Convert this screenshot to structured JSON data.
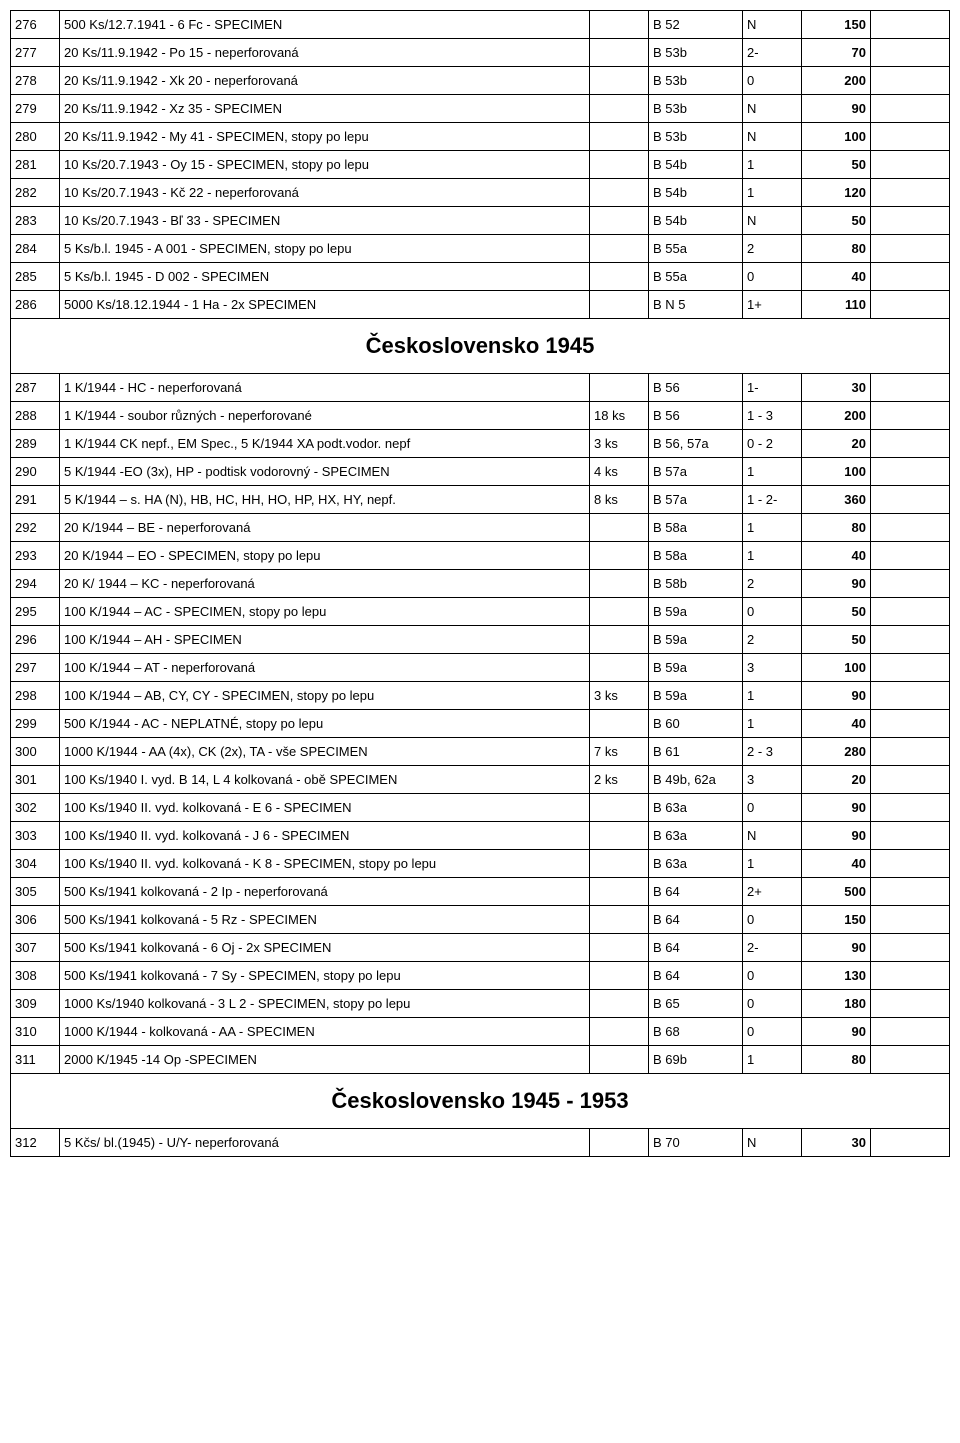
{
  "sections": [
    {
      "rows": [
        {
          "num": "276",
          "desc": "500 Ks/12.7.1941 - 6 Fc - SPECIMEN",
          "qty": "",
          "cat": "B 52",
          "grade": "N",
          "price": "150"
        },
        {
          "num": "277",
          "desc": "20 Ks/11.9.1942 - Po 15 - neperforovaná",
          "qty": "",
          "cat": "B 53b",
          "grade": "2-",
          "price": "70"
        },
        {
          "num": "278",
          "desc": "20 Ks/11.9.1942 - Xk 20 - neperforovaná",
          "qty": "",
          "cat": "B 53b",
          "grade": "0",
          "price": "200"
        },
        {
          "num": "279",
          "desc": "20 Ks/11.9.1942 - Xz 35 - SPECIMEN",
          "qty": "",
          "cat": "B 53b",
          "grade": "N",
          "price": "90"
        },
        {
          "num": "280",
          "desc": "20 Ks/11.9.1942 - My 41 - SPECIMEN, stopy po lepu",
          "qty": "",
          "cat": "B 53b",
          "grade": "N",
          "price": "100"
        },
        {
          "num": "281",
          "desc": "10 Ks/20.7.1943 - Oy 15 - SPECIMEN, stopy po lepu",
          "qty": "",
          "cat": "B 54b",
          "grade": "1",
          "price": "50"
        },
        {
          "num": "282",
          "desc": "10 Ks/20.7.1943 - Kč 22 - neperforovaná",
          "qty": "",
          "cat": "B 54b",
          "grade": "1",
          "price": "120"
        },
        {
          "num": "283",
          "desc": "10 Ks/20.7.1943 - Bľ 33 - SPECIMEN",
          "qty": "",
          "cat": "B 54b",
          "grade": "N",
          "price": "50"
        },
        {
          "num": "284",
          "desc": "5 Ks/b.l. 1945 - A 001 - SPECIMEN, stopy po lepu",
          "qty": "",
          "cat": "B 55a",
          "grade": "2",
          "price": "80"
        },
        {
          "num": "285",
          "desc": "5 Ks/b.l. 1945 - D 002 - SPECIMEN",
          "qty": "",
          "cat": "B 55a",
          "grade": "0",
          "price": "40"
        },
        {
          "num": "286",
          "desc": "5000 Ks/18.12.1944 - 1 Ha - 2x SPECIMEN",
          "qty": "",
          "cat": "B N 5",
          "grade": "1+",
          "price": "110"
        }
      ]
    },
    {
      "heading": "Československo 1945",
      "rows": [
        {
          "num": "287",
          "desc": "1 K/1944 - HC - neperforovaná",
          "qty": "",
          "cat": "B 56",
          "grade": "1-",
          "price": "30"
        },
        {
          "num": "288",
          "desc": "1 K/1944 - soubor různých - neperforované",
          "qty": "18 ks",
          "cat": "B 56",
          "grade": "1 - 3",
          "price": "200"
        },
        {
          "num": "289",
          "desc": "1 K/1944 CK nepf., EM Spec., 5 K/1944 XA podt.vodor. nepf",
          "qty": "3 ks",
          "cat": "B 56, 57a",
          "grade": "0 - 2",
          "price": "20"
        },
        {
          "num": "290",
          "desc": "5 K/1944 -EO  (3x), HP - podtisk vodorovný  - SPECIMEN",
          "qty": "4 ks",
          "cat": "B 57a",
          "grade": "1",
          "price": "100"
        },
        {
          "num": "291",
          "desc": "5 K/1944 – s. HA (N), HB, HC, HH, HO, HP, HX, HY, nepf.",
          "qty": "8 ks",
          "cat": "B 57a",
          "grade": "1 - 2-",
          "price": "360"
        },
        {
          "num": "292",
          "desc": "20 K/1944 – BE - neperforovaná",
          "qty": "",
          "cat": "B 58a",
          "grade": "1",
          "price": "80"
        },
        {
          "num": "293",
          "desc": "20 K/1944 – EO - SPECIMEN, stopy po lepu",
          "qty": "",
          "cat": "B 58a",
          "grade": "1",
          "price": "40"
        },
        {
          "num": "294",
          "desc": "20 K/ 1944 – KC - neperforovaná",
          "qty": "",
          "cat": "B 58b",
          "grade": "2",
          "price": "90"
        },
        {
          "num": "295",
          "desc": "100 K/1944 – AC - SPECIMEN, stopy po lepu",
          "qty": "",
          "cat": "B 59a",
          "grade": "0",
          "price": "50"
        },
        {
          "num": "296",
          "desc": "100 K/1944 – AH - SPECIMEN",
          "qty": "",
          "cat": "B 59a",
          "grade": "2",
          "price": "50"
        },
        {
          "num": "297",
          "desc": "100 K/1944 – AT - neperforovaná",
          "qty": "",
          "cat": "B 59a",
          "grade": "3",
          "price": "100"
        },
        {
          "num": "298",
          "desc": "100 K/1944 – AB, CY, CY - SPECIMEN, stopy po lepu",
          "qty": "3 ks",
          "cat": "B 59a",
          "grade": "1",
          "price": "90"
        },
        {
          "num": "299",
          "desc": "500 K/1944 - AC - NEPLATNÉ, stopy po lepu",
          "qty": "",
          "cat": "B 60",
          "grade": "1",
          "price": "40"
        },
        {
          "num": "300",
          "desc": "1000 K/1944 - AA (4x), CK (2x), TA - vše SPECIMEN",
          "qty": "7 ks",
          "cat": "B 61",
          "grade": "2 - 3",
          "price": "280"
        },
        {
          "num": "301",
          "desc": "100 Ks/1940 I. vyd. B 14, L 4 kolkovaná - obě SPECIMEN",
          "qty": "2 ks",
          "cat": "B 49b, 62a",
          "grade": "3",
          "price": "20"
        },
        {
          "num": "302",
          "desc": "100 Ks/1940 II. vyd. kolkovaná - E 6 - SPECIMEN",
          "qty": "",
          "cat": "B 63a",
          "grade": "0",
          "price": "90"
        },
        {
          "num": "303",
          "desc": "100 Ks/1940 II. vyd. kolkovaná - J 6 - SPECIMEN",
          "qty": "",
          "cat": "B 63a",
          "grade": "N",
          "price": "90"
        },
        {
          "num": "304",
          "desc": "100 Ks/1940 II. vyd. kolkovaná - K 8 - SPECIMEN, stopy po lepu",
          "qty": "",
          "cat": "B 63a",
          "grade": "1",
          "price": "40"
        },
        {
          "num": "305",
          "desc": "500 Ks/1941 kolkovaná - 2 Ip - neperforovaná",
          "qty": "",
          "cat": "B 64",
          "grade": "2+",
          "price": "500"
        },
        {
          "num": "306",
          "desc": "500 Ks/1941 kolkovaná - 5 Rz - SPECIMEN",
          "qty": "",
          "cat": "B 64",
          "grade": "0",
          "price": "150"
        },
        {
          "num": "307",
          "desc": "500 Ks/1941 kolkovaná - 6 Oj - 2x SPECIMEN",
          "qty": "",
          "cat": "B 64",
          "grade": "2-",
          "price": "90"
        },
        {
          "num": "308",
          "desc": "500 Ks/1941 kolkovaná - 7 Sy - SPECIMEN, stopy po lepu",
          "qty": "",
          "cat": "B 64",
          "grade": "0",
          "price": "130"
        },
        {
          "num": "309",
          "desc": "1000 Ks/1940 kolkovaná - 3 L 2 - SPECIMEN, stopy po lepu",
          "qty": "",
          "cat": "B 65",
          "grade": "0",
          "price": "180"
        },
        {
          "num": "310",
          "desc": "1000 K/1944 - kolkovaná - AA - SPECIMEN",
          "qty": "",
          "cat": "B 68",
          "grade": "0",
          "price": "90"
        },
        {
          "num": "311",
          "desc": "2000 K/1945 -14 Op -SPECIMEN",
          "qty": "",
          "cat": "B 69b",
          "grade": "1",
          "price": "80"
        }
      ]
    },
    {
      "heading": "Československo 1945 - 1953",
      "rows": [
        {
          "num": "312",
          "desc": "5 Kčs/ bl.(1945) - U/Y- neperforovaná",
          "qty": "",
          "cat": "B 70",
          "grade": "N",
          "price": "30"
        }
      ]
    }
  ]
}
